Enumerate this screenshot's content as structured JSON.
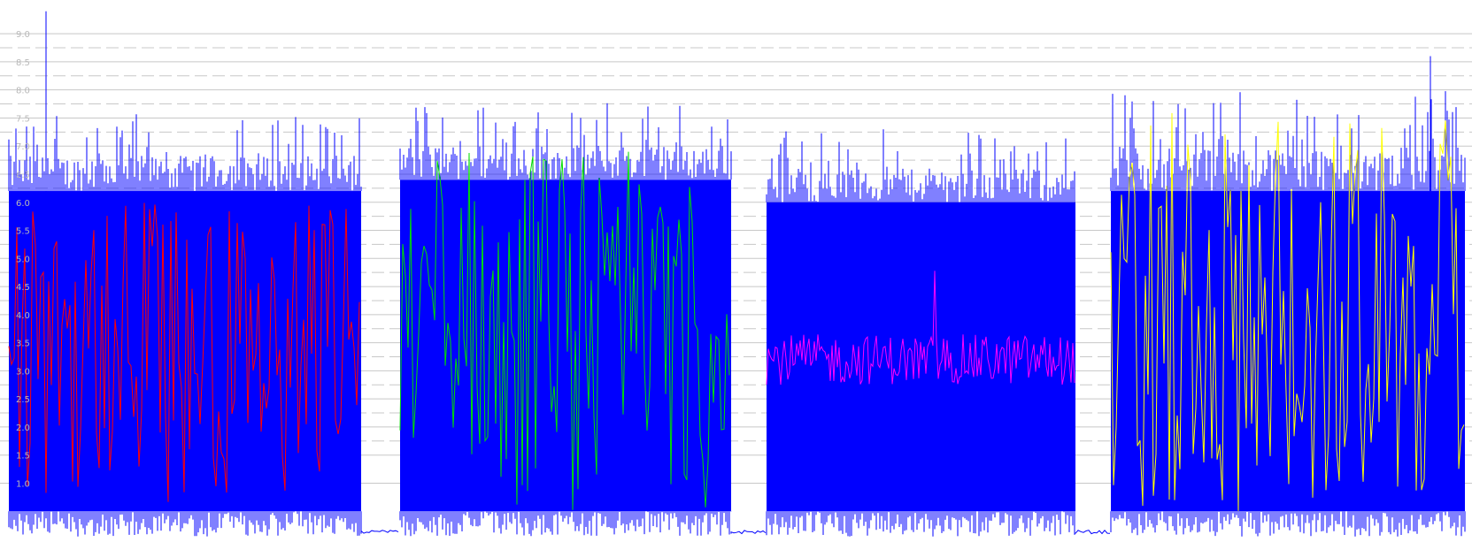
{
  "chart_data": {
    "type": "line",
    "title": "",
    "xlabel": "",
    "ylabel": "",
    "ylim": [
      0,
      9.6
    ],
    "y_ticks": [
      "1.0",
      "1.5",
      "2.0",
      "2.5",
      "3.0",
      "3.5",
      "4.0",
      "4.5",
      "5.0",
      "5.5",
      "6.0",
      "6.5",
      "7.0",
      "7.5",
      "8.0",
      "8.5",
      "9.0"
    ],
    "grid": {
      "horizontal": true,
      "solid_at": [
        1.0,
        1.5,
        2.0,
        2.5,
        3.0,
        3.5,
        4.0,
        4.5,
        5.0,
        5.5,
        6.0,
        6.5,
        7.0,
        7.5,
        8.0,
        8.5,
        9.0
      ],
      "dashed_at": [
        1.75,
        2.25,
        2.75,
        3.25,
        3.75,
        4.25,
        4.75,
        5.25,
        5.75,
        6.25,
        6.75,
        7.25,
        7.75,
        8.25,
        8.75
      ]
    },
    "x_range": [
      0,
      1663
    ],
    "background_series": {
      "color": "#0000ff",
      "segments": [
        {
          "x_start": 10,
          "x_end": 408,
          "dense_low": 0.5,
          "dense_high": 6.2,
          "peak_max": 7.6
        },
        {
          "x_start": 452,
          "x_end": 826,
          "dense_low": 0.5,
          "dense_high": 6.4,
          "peak_max": 7.8
        },
        {
          "x_start": 866,
          "x_end": 1215,
          "dense_low": 0.5,
          "dense_high": 6.0,
          "peak_max": 7.3
        },
        {
          "x_start": 1255,
          "x_end": 1655,
          "dense_low": 0.5,
          "dense_high": 6.2,
          "peak_max": 8.0
        }
      ],
      "gaps_baseline": 0.1,
      "spikes": [
        {
          "x": 52,
          "y": 9.4
        },
        {
          "x": 1616,
          "y": 8.6
        }
      ]
    },
    "series": [
      {
        "color": "#ff0000",
        "x_start": 10,
        "x_end": 408,
        "center": 3.2,
        "low": 0.6,
        "high": 6.0
      },
      {
        "color": "#00dd00",
        "x_start": 452,
        "x_end": 826,
        "center": 3.8,
        "low": 0.5,
        "high": 6.9
      },
      {
        "color": "#ff00ff",
        "x_start": 866,
        "x_end": 1215,
        "center": 3.2,
        "low": 2.7,
        "high": 3.6
      },
      {
        "color": "#ffff00",
        "x_start": 1255,
        "x_end": 1655,
        "center": 3.3,
        "low": 0.5,
        "high": 7.6
      }
    ]
  }
}
